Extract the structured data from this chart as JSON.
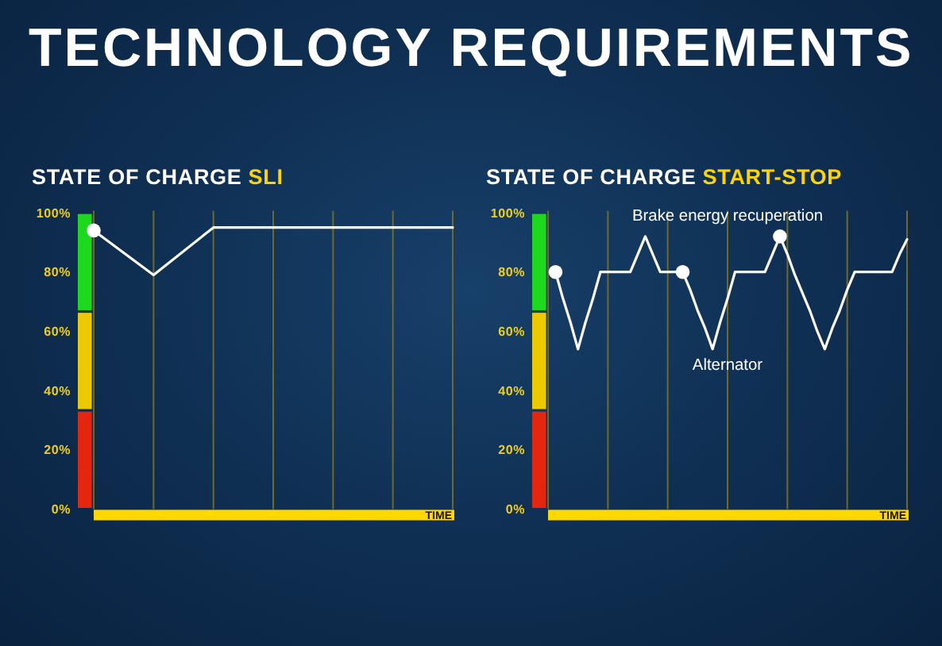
{
  "chart_data": [
    {
      "type": "other",
      "title": "TECHNOLOGY REQUIREMENTS"
    },
    {
      "type": "line",
      "title": "STATE OF CHARGE",
      "subtitle": "SLI",
      "xlabel": "TIME",
      "categories": [
        null,
        null,
        null,
        null,
        null,
        null,
        null
      ],
      "ylim": [
        0,
        100
      ],
      "yticks": [
        {
          "value": 0,
          "label": "0%"
        },
        {
          "value": 20,
          "label": "20%"
        },
        {
          "value": 40,
          "label": "40%"
        },
        {
          "value": 60,
          "label": "60%"
        },
        {
          "value": 80,
          "label": "80%"
        },
        {
          "value": 100,
          "label": "100%"
        }
      ],
      "tick_labels": "y",
      "grid": "x",
      "series": [
        {
          "type": "line",
          "color": "#ffffff",
          "values": [
            94,
            79,
            95,
            95,
            95,
            95,
            95
          ]
        },
        {
          "type": "scatter",
          "color": "#ffffff",
          "marker": "circle",
          "values": [
            94,
            null,
            null,
            null,
            null,
            null,
            null
          ]
        }
      ]
    },
    {
      "type": "line",
      "title": "STATE OF CHARGE",
      "subtitle": "START-STOP",
      "xlabel": "TIME",
      "categories": [
        null,
        null,
        null,
        null,
        null,
        null,
        null,
        null,
        null,
        null,
        null,
        null,
        null,
        null,
        null,
        null,
        null,
        null,
        null,
        null,
        null,
        null,
        null,
        null,
        null,
        null,
        null,
        null,
        null,
        null,
        null,
        null,
        null,
        null,
        null,
        null,
        null,
        null,
        null,
        null,
        null,
        null,
        null,
        null,
        null,
        null,
        null,
        null,
        null
      ],
      "ylim": [
        0,
        100
      ],
      "yticks": [
        {
          "value": 0,
          "label": "0%"
        },
        {
          "value": 20,
          "label": "20%"
        },
        {
          "value": 40,
          "label": "40%"
        },
        {
          "value": 60,
          "label": "60%"
        },
        {
          "value": 80,
          "label": "80%"
        },
        {
          "value": 100,
          "label": "100%"
        }
      ],
      "tick_labels": "y",
      "grid": "x",
      "annotations": [
        "Brake energy recuperation",
        "Alternator"
      ],
      "series": [
        {
          "type": "line",
          "color": "#ffffff",
          "values": [
            null,
            80,
            71,
            63,
            54,
            63,
            71,
            80,
            80,
            80,
            80,
            80,
            86,
            92,
            86,
            80,
            80,
            80,
            80,
            74,
            67,
            61,
            54,
            63,
            71,
            80,
            80,
            80,
            80,
            80,
            86,
            92,
            86,
            79,
            73,
            67,
            60,
            54,
            61,
            67,
            74,
            80,
            80,
            80,
            80,
            80,
            80,
            86,
            91
          ]
        },
        {
          "type": "scatter",
          "color": "#ffffff",
          "marker": "circle",
          "values": [
            null,
            80,
            null,
            null,
            null,
            null,
            null,
            null,
            null,
            null,
            null,
            null,
            null,
            null,
            null,
            null,
            null,
            null,
            80,
            null,
            null,
            null,
            null,
            null,
            null,
            null,
            null,
            null,
            null,
            null,
            null,
            92,
            null,
            null,
            null,
            null,
            null,
            null,
            null,
            null,
            null,
            null,
            null,
            null,
            null,
            null,
            null,
            null,
            null
          ]
        }
      ]
    }
  ]
}
